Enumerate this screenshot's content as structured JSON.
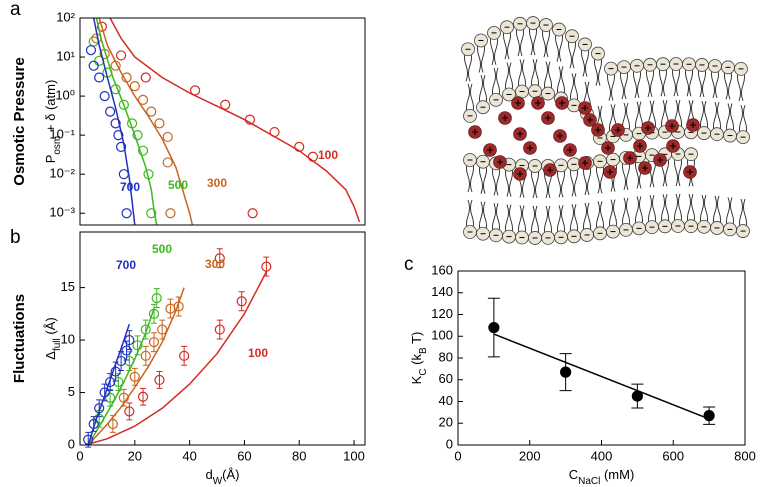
{
  "chart_data": [
    {
      "type": "scatter",
      "panel": "a",
      "side_label": "Osmotic Pressure",
      "ylabel": {
        "p": "P",
        "sub": "osm",
        "rest": " + δ (atm)"
      },
      "yscale": "log",
      "xlim": [
        0,
        104
      ],
      "ylim": [
        0.0005,
        100
      ],
      "yticks": [
        {
          "value": 0.001,
          "label": "10⁻³"
        },
        {
          "value": 0.01,
          "label": "10⁻²"
        },
        {
          "value": 0.1,
          "label": "10⁻¹"
        },
        {
          "value": 1,
          "label": "10⁰"
        },
        {
          "value": 10,
          "label": "10¹"
        },
        {
          "value": 100,
          "label": "10²"
        }
      ],
      "series": [
        {
          "name": "100",
          "color": "#d42a20",
          "x": [
            8,
            15,
            24,
            42,
            53,
            62,
            63,
            71,
            80,
            85
          ],
          "values": [
            60,
            11,
            3,
            1.4,
            0.6,
            0.25,
            0.001,
            0.12,
            0.05,
            0.028
          ],
          "fit_x": [
            11,
            15,
            20,
            30,
            40,
            50,
            60,
            70,
            80,
            90,
            97,
            100,
            102
          ],
          "fit": [
            100,
            30,
            10,
            3,
            1.2,
            0.55,
            0.25,
            0.1,
            0.04,
            0.012,
            0.004,
            0.0015,
            0.0006
          ]
        },
        {
          "name": "300",
          "color": "#c8651e",
          "x": [
            6,
            9,
            13,
            17,
            20,
            23,
            26,
            29,
            32,
            32,
            33
          ],
          "values": [
            30,
            12,
            6,
            3,
            1.8,
            0.8,
            0.4,
            0.2,
            0.09,
            0.02,
            0.001
          ],
          "fit_x": [
            7,
            10,
            15,
            20,
            25,
            30,
            35,
            38,
            40,
            41
          ],
          "fit": [
            100,
            20,
            4,
            1,
            0.3,
            0.08,
            0.015,
            0.003,
            0.001,
            0.0005
          ]
        },
        {
          "name": "500",
          "color": "#3cb81e",
          "x": [
            5,
            7,
            10,
            13,
            16,
            19,
            21,
            23,
            25,
            26
          ],
          "values": [
            25,
            8,
            4,
            1.5,
            0.6,
            0.2,
            0.1,
            0.04,
            0.01,
            0.001
          ],
          "fit_x": [
            6,
            8,
            12,
            16,
            20,
            24,
            26,
            27,
            28
          ],
          "fit": [
            100,
            25,
            3,
            0.6,
            0.1,
            0.015,
            0.004,
            0.0012,
            0.0005
          ]
        },
        {
          "name": "700",
          "color": "#2030c0",
          "x": [
            4,
            5,
            7,
            9,
            11,
            13,
            14,
            15,
            16,
            17
          ],
          "values": [
            15,
            6,
            3,
            1,
            0.4,
            0.2,
            0.1,
            0.05,
            0.01,
            0.001
          ],
          "fit_x": [
            5,
            7,
            10,
            13,
            16,
            18,
            19,
            20
          ],
          "fit": [
            100,
            20,
            3,
            0.5,
            0.06,
            0.008,
            0.002,
            0.0005
          ]
        }
      ]
    },
    {
      "type": "scatter",
      "panel": "b",
      "side_label": "Fluctuations",
      "ylabel": {
        "p": "Δ",
        "sub": "full",
        "rest": " (Å)"
      },
      "xlabel": {
        "p": "d",
        "sub": "W",
        "rest": "(Å)"
      },
      "xlim": [
        0,
        104
      ],
      "ylim": [
        0,
        20.3
      ],
      "xticks": [
        0,
        20,
        40,
        60,
        80,
        100
      ],
      "yticks": [
        0,
        5,
        10,
        15
      ],
      "series": [
        {
          "name": "100",
          "color": "#d42a20",
          "x": [
            18,
            23,
            29,
            38,
            51,
            51,
            59,
            68
          ],
          "values": [
            3.2,
            4.6,
            6.2,
            8.5,
            11,
            17.8,
            13.7,
            17
          ],
          "errors": [
            0.8,
            0.8,
            0.8,
            0.9,
            0.9,
            0.9,
            0.9,
            0.9
          ],
          "fit_x": [
            2,
            10,
            20,
            30,
            40,
            50,
            60,
            68
          ],
          "fit": [
            0,
            0.6,
            1.8,
            3.5,
            5.8,
            8.7,
            12.5,
            16.5
          ]
        },
        {
          "name": "300",
          "color": "#c8651e",
          "x": [
            12,
            16,
            20,
            24,
            27,
            30,
            33,
            36
          ],
          "values": [
            2,
            4.5,
            6.5,
            8.5,
            9.8,
            11,
            13,
            13.2
          ],
          "errors": [
            0.8,
            0.8,
            0.8,
            0.9,
            0.9,
            0.9,
            0.9,
            0.9
          ],
          "fit_x": [
            3,
            10,
            15,
            20,
            25,
            30,
            35,
            38
          ],
          "fit": [
            0,
            2,
            3.6,
            5.5,
            7.5,
            9.8,
            12.8,
            15
          ]
        },
        {
          "name": "500",
          "color": "#3cb81e",
          "x": [
            7,
            11,
            14,
            18,
            21,
            24,
            27,
            28
          ],
          "values": [
            2.5,
            4.5,
            6,
            8,
            9.5,
            11,
            12.5,
            14
          ],
          "errors": [
            0.8,
            0.8,
            0.8,
            0.9,
            0.9,
            0.9,
            0.9,
            0.9
          ],
          "fit_x": [
            3,
            8,
            12,
            16,
            20,
            24,
            27
          ],
          "fit": [
            0,
            2.2,
            4,
            6,
            8.2,
            10.7,
            13
          ]
        },
        {
          "name": "700",
          "color": "#2030c0",
          "x": [
            3,
            5,
            7,
            9,
            11,
            13,
            15,
            17,
            18
          ],
          "values": [
            0.5,
            2,
            3.5,
            5,
            6,
            7,
            8,
            9,
            10
          ],
          "errors": [
            0.7,
            0.7,
            0.8,
            0.8,
            0.8,
            0.9,
            0.9,
            0.9,
            0.9
          ],
          "fit_x": [
            3,
            6,
            9,
            12,
            15,
            18
          ],
          "fit": [
            0,
            2.5,
            4.7,
            7,
            9.2,
            11.5
          ]
        }
      ]
    },
    {
      "type": "scatter",
      "panel": "c",
      "filled": true,
      "ylabel": {
        "p": "K",
        "sub": "C",
        "rest": " (k",
        "sub2": "B",
        "rest2": " T)"
      },
      "xlabel": {
        "p": "C",
        "sub": "NaCl",
        "rest": " (mM)"
      },
      "xlim": [
        0,
        800
      ],
      "ylim": [
        0,
        160
      ],
      "xticks": [
        0,
        200,
        400,
        600,
        800
      ],
      "yticks": [
        0,
        20,
        40,
        60,
        80,
        100,
        120,
        140,
        160
      ],
      "series": [
        {
          "color": "#000000",
          "x": [
            100,
            300,
            500,
            700
          ],
          "values": [
            108,
            67,
            45,
            27
          ],
          "errors": [
            27,
            17,
            11,
            8
          ],
          "fit_x": [
            100,
            700
          ],
          "fit": [
            102,
            24
          ]
        }
      ]
    }
  ]
}
